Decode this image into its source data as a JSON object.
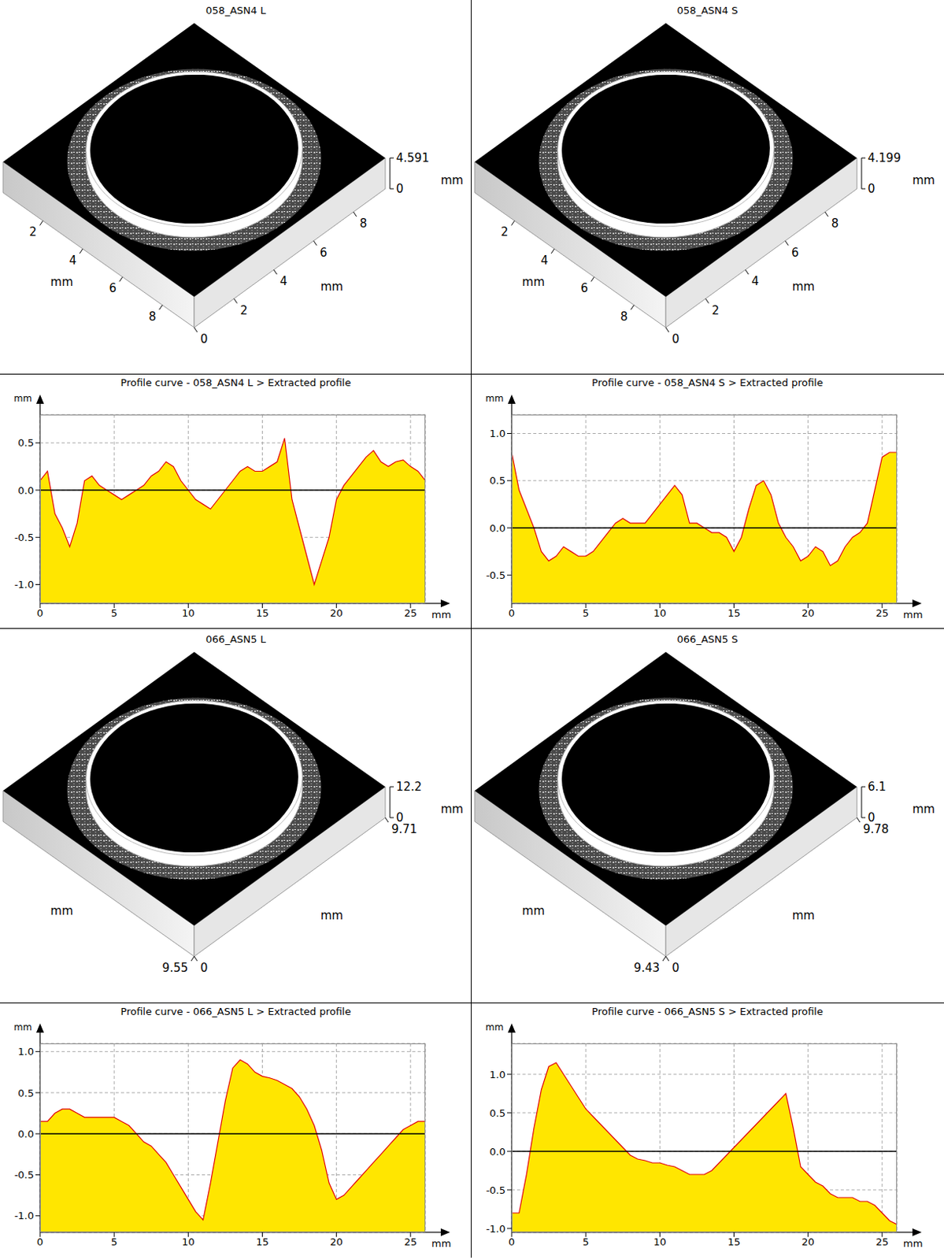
{
  "chart_data": [
    {
      "type": "surface",
      "title": "058_ASN4 L",
      "x_label": "mm",
      "y_label": "mm",
      "z_label": "mm",
      "xlim": [
        0,
        9.6
      ],
      "xticks": [
        0,
        2,
        4,
        6,
        8
      ],
      "ylim": [
        0,
        9.6
      ],
      "yticks": [
        2,
        4,
        6,
        8
      ],
      "zlim": [
        0,
        4.591
      ],
      "zticks": [
        0,
        4.591
      ]
    },
    {
      "type": "surface",
      "title": "058_ASN4 S",
      "x_label": "mm",
      "y_label": "mm",
      "z_label": "mm",
      "xlim": [
        0,
        9.6
      ],
      "xticks": [
        0,
        2,
        4,
        6,
        8
      ],
      "ylim": [
        0,
        9.6
      ],
      "yticks": [
        2,
        4,
        6,
        8
      ],
      "zlim": [
        0,
        4.199
      ],
      "zticks": [
        0,
        4.199
      ]
    },
    {
      "type": "area",
      "title": "Profile curve - 058_ASN4 L > Extracted profile",
      "x_label": "mm",
      "y_label": "mm",
      "color": "#ffe600",
      "grid": true,
      "x": [
        0,
        0.5,
        1,
        1.5,
        2,
        2.5,
        3,
        3.5,
        4,
        4.5,
        5,
        5.5,
        6,
        6.5,
        7,
        7.5,
        8,
        8.5,
        9,
        9.5,
        10,
        10.5,
        11,
        11.5,
        12,
        12.5,
        13,
        13.5,
        14,
        14.5,
        15,
        15.5,
        16,
        16.5,
        17,
        17.5,
        18,
        18.5,
        19,
        19.5,
        20,
        20.5,
        21,
        21.5,
        22,
        22.5,
        23,
        23.5,
        24,
        24.5,
        25,
        25.5,
        26
      ],
      "values": [
        0.1,
        0.2,
        -0.25,
        -0.4,
        -0.6,
        -0.35,
        0.1,
        0.15,
        0.05,
        0,
        -0.05,
        -0.1,
        -0.05,
        0,
        0.05,
        0.15,
        0.2,
        0.3,
        0.25,
        0.1,
        0,
        -0.1,
        -0.15,
        -0.2,
        -0.1,
        0,
        0.1,
        0.2,
        0.25,
        0.2,
        0.2,
        0.25,
        0.3,
        0.55,
        -0.1,
        -0.4,
        -0.7,
        -1.0,
        -0.75,
        -0.5,
        -0.1,
        0.05,
        0.15,
        0.25,
        0.35,
        0.42,
        0.3,
        0.25,
        0.3,
        0.32,
        0.25,
        0.2,
        0.1
      ],
      "xlim": [
        0,
        26
      ],
      "xticks": [
        0,
        5,
        10,
        15,
        20,
        25
      ],
      "ylim": [
        -1.2,
        0.8
      ],
      "yticks": [
        {
          "value": -1,
          "label": "-1.0"
        },
        -0.5,
        {
          "value": 0,
          "label": "0.0"
        },
        0.5
      ]
    },
    {
      "type": "area",
      "title": "Profile curve - 058_ASN4 S > Extracted profile",
      "x_label": "mm",
      "y_label": "mm",
      "color": "#ffe600",
      "grid": true,
      "x": [
        0,
        0.5,
        1,
        1.5,
        2,
        2.5,
        3,
        3.5,
        4,
        4.5,
        5,
        5.5,
        6,
        6.5,
        7,
        7.5,
        8,
        8.5,
        9,
        9.5,
        10,
        10.5,
        11,
        11.5,
        12,
        12.5,
        13,
        13.5,
        14,
        14.5,
        15,
        15.5,
        16,
        16.5,
        17,
        17.5,
        18,
        18.5,
        19,
        19.5,
        20,
        20.5,
        21,
        21.5,
        22,
        22.5,
        23,
        23.5,
        24,
        24.5,
        25,
        25.5,
        26
      ],
      "values": [
        0.8,
        0.4,
        0.2,
        0,
        -0.25,
        -0.35,
        -0.3,
        -0.2,
        -0.25,
        -0.3,
        -0.3,
        -0.25,
        -0.15,
        -0.05,
        0.05,
        0.1,
        0.05,
        0.05,
        0.05,
        0.15,
        0.25,
        0.35,
        0.45,
        0.35,
        0.05,
        0.05,
        0,
        -0.05,
        -0.05,
        -0.1,
        -0.25,
        -0.1,
        0.2,
        0.45,
        0.5,
        0.35,
        0.05,
        -0.1,
        -0.2,
        -0.35,
        -0.3,
        -0.2,
        -0.25,
        -0.4,
        -0.35,
        -0.2,
        -0.1,
        -0.05,
        0.05,
        0.4,
        0.75,
        0.8,
        0.8
      ],
      "xlim": [
        0,
        26
      ],
      "xticks": [
        0,
        5,
        10,
        15,
        20,
        25
      ],
      "ylim": [
        -0.8,
        1.2
      ],
      "yticks": [
        -0.5,
        {
          "value": 0,
          "label": "0.0"
        },
        0.5,
        {
          "value": 1,
          "label": "1.0"
        }
      ]
    },
    {
      "type": "surface",
      "title": "066_ASN5 L",
      "x_label": "mm",
      "y_label": "mm",
      "z_label": "mm",
      "xlim": [
        0,
        9.71
      ],
      "xticks": [
        0,
        9.71
      ],
      "ylim": [
        0,
        9.55
      ],
      "yticks": [
        9.55
      ],
      "zlim": [
        0,
        12.2
      ],
      "zticks": [
        0,
        12.2
      ]
    },
    {
      "type": "surface",
      "title": "066_ASN5 S",
      "x_label": "mm",
      "y_label": "mm",
      "z_label": "mm",
      "xlim": [
        0,
        9.78
      ],
      "xticks": [
        0,
        9.78
      ],
      "ylim": [
        0,
        9.43
      ],
      "yticks": [
        9.43
      ],
      "zlim": [
        0,
        6.1
      ],
      "zticks": [
        0,
        6.1
      ]
    },
    {
      "type": "area",
      "title": "Profile curve - 066_ASN5 L > Extracted profile",
      "x_label": "mm",
      "y_label": "mm",
      "color": "#ffe600",
      "grid": true,
      "x": [
        0,
        0.5,
        1,
        1.5,
        2,
        2.5,
        3,
        3.5,
        4,
        4.5,
        5,
        5.5,
        6,
        6.5,
        7,
        7.5,
        8,
        8.5,
        9,
        9.5,
        10,
        10.5,
        11,
        11.5,
        12,
        12.5,
        13,
        13.5,
        14,
        14.5,
        15,
        15.5,
        16,
        16.5,
        17,
        17.5,
        18,
        18.5,
        19,
        19.5,
        20,
        20.5,
        21,
        21.5,
        22,
        22.5,
        23,
        23.5,
        24,
        24.5,
        25,
        25.5,
        26
      ],
      "values": [
        0.15,
        0.15,
        0.25,
        0.3,
        0.3,
        0.25,
        0.2,
        0.2,
        0.2,
        0.2,
        0.2,
        0.15,
        0.1,
        0,
        -0.1,
        -0.15,
        -0.25,
        -0.35,
        -0.5,
        -0.65,
        -0.8,
        -0.95,
        -1.05,
        -0.6,
        -0.1,
        0.4,
        0.8,
        0.9,
        0.85,
        0.75,
        0.7,
        0.68,
        0.65,
        0.6,
        0.55,
        0.45,
        0.3,
        0.1,
        -0.2,
        -0.6,
        -0.8,
        -0.75,
        -0.65,
        -0.55,
        -0.45,
        -0.35,
        -0.25,
        -0.15,
        -0.05,
        0.05,
        0.1,
        0.15,
        0.15
      ],
      "xlim": [
        0,
        26
      ],
      "xticks": [
        0,
        5,
        10,
        15,
        20,
        25
      ],
      "ylim": [
        -1.2,
        1.1
      ],
      "yticks": [
        {
          "value": -1,
          "label": "-1.0"
        },
        -0.5,
        {
          "value": 0,
          "label": "0.0"
        },
        0.5,
        {
          "value": 1,
          "label": "1.0"
        }
      ]
    },
    {
      "type": "area",
      "title": "Profile curve - 066_ASN5 S > Extracted profile",
      "x_label": "mm",
      "y_label": "mm",
      "color": "#ffe600",
      "grid": true,
      "x": [
        0,
        0.5,
        1,
        1.5,
        2,
        2.5,
        3,
        3.5,
        4,
        4.5,
        5,
        5.5,
        6,
        6.5,
        7,
        7.5,
        8,
        8.5,
        9,
        9.5,
        10,
        10.5,
        11,
        11.5,
        12,
        12.5,
        13,
        13.5,
        14,
        14.5,
        15,
        15.5,
        16,
        16.5,
        17,
        17.5,
        18,
        18.5,
        19,
        19.5,
        20,
        20.5,
        21,
        21.5,
        22,
        22.5,
        23,
        23.5,
        24,
        24.5,
        25,
        25.5,
        26
      ],
      "values": [
        -0.8,
        -0.8,
        -0.3,
        0.3,
        0.8,
        1.1,
        1.15,
        1.0,
        0.85,
        0.7,
        0.55,
        0.45,
        0.35,
        0.25,
        0.15,
        0.05,
        -0.05,
        -0.1,
        -0.12,
        -0.15,
        -0.15,
        -0.18,
        -0.2,
        -0.25,
        -0.3,
        -0.3,
        -0.3,
        -0.25,
        -0.15,
        -0.05,
        0.05,
        0.15,
        0.25,
        0.35,
        0.45,
        0.55,
        0.65,
        0.75,
        0.3,
        -0.2,
        -0.3,
        -0.4,
        -0.45,
        -0.55,
        -0.6,
        -0.6,
        -0.6,
        -0.65,
        -0.65,
        -0.7,
        -0.8,
        -0.9,
        -0.95
      ],
      "xlim": [
        0,
        26
      ],
      "xticks": [
        0,
        5,
        10,
        15,
        20,
        25
      ],
      "ylim": [
        -1.05,
        1.4
      ],
      "yticks": [
        {
          "value": -1,
          "label": "-1.0"
        },
        -0.5,
        {
          "value": 0,
          "label": "0.0"
        },
        0.5,
        {
          "value": 1,
          "label": "1.0"
        }
      ]
    }
  ]
}
